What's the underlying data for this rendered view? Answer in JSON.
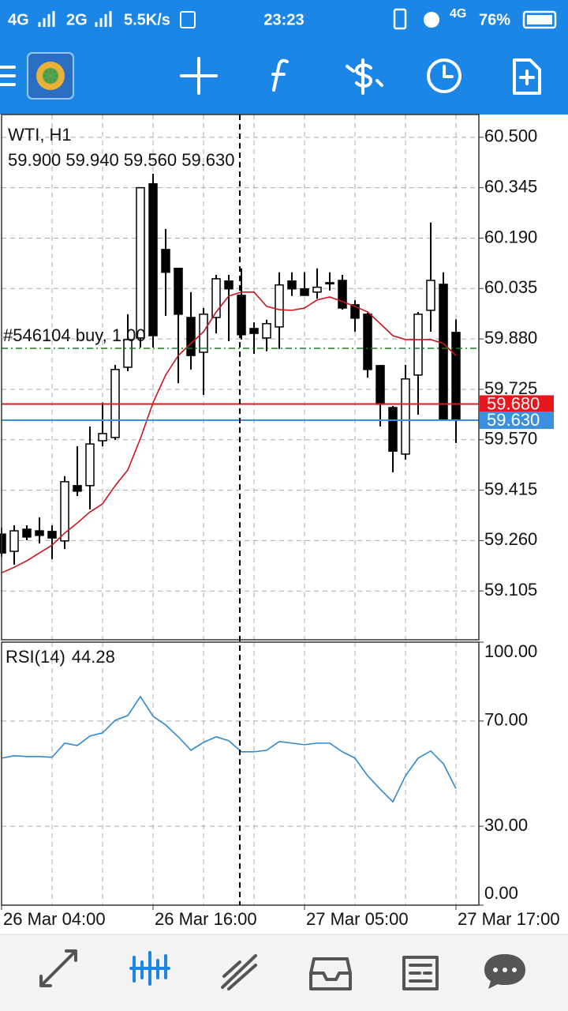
{
  "status_bar": {
    "network_1": "4G",
    "network_2": "2G",
    "speed": "5.5K/s",
    "time": "23:23",
    "network_3": "4G",
    "battery": "76%"
  },
  "chart_data": [
    {
      "type": "candlestick",
      "title": "WTI, H1",
      "info": "59.900 59.940 59.560 59.630",
      "categories": [
        "26 Mar 04:00",
        null,
        null,
        null,
        null,
        null,
        null,
        null,
        null,
        null,
        null,
        null,
        "26 Mar 16:00",
        null,
        null,
        null,
        null,
        null,
        null,
        null,
        null,
        null,
        null,
        null,
        "27 Mar 05:00",
        null,
        null,
        null,
        null,
        null,
        null,
        null,
        null,
        null,
        null,
        null,
        "27 Mar 17:00"
      ],
      "open": [
        59.28,
        59.227,
        59.295,
        59.29,
        59.288,
        59.259,
        59.429,
        59.429,
        59.567,
        59.577,
        59.793,
        59.883,
        60.357,
        60.155,
        60.097,
        59.946,
        59.839,
        59.946,
        60.058,
        60.014,
        59.912,
        59.883,
        59.917,
        60.058,
        60.034,
        60.024,
        60.051,
        60.06,
        59.985,
        59.956,
        59.798,
        59.669,
        59.526,
        59.769,
        59.968,
        60.048,
        59.9
      ],
      "high": [
        59.3,
        59.307,
        59.307,
        59.331,
        59.307,
        59.458,
        59.55,
        59.611,
        59.684,
        59.8,
        59.956,
        60.345,
        60.388,
        60.218,
        60.097,
        60.024,
        59.975,
        60.077,
        60.077,
        60.097,
        59.931,
        59.939,
        60.085,
        60.085,
        60.085,
        60.097,
        60.085,
        60.077,
        59.999,
        59.961,
        59.8,
        59.674,
        59.8,
        59.963,
        60.238,
        60.085,
        59.94
      ],
      "low": [
        59.21,
        59.186,
        59.261,
        59.251,
        59.203,
        59.234,
        59.397,
        59.356,
        59.55,
        59.57,
        59.781,
        59.854,
        59.854,
        59.951,
        59.744,
        59.786,
        59.708,
        59.897,
        59.873,
        59.878,
        59.834,
        59.842,
        59.849,
        60.012,
        60.012,
        60.004,
        60.029,
        59.97,
        59.902,
        59.761,
        59.611,
        59.47,
        59.509,
        59.647,
        59.902,
        59.63,
        59.56
      ],
      "close": [
        59.222,
        59.29,
        59.271,
        59.276,
        59.268,
        59.441,
        59.412,
        59.557,
        59.589,
        59.786,
        59.878,
        60.345,
        59.89,
        60.085,
        59.956,
        59.829,
        59.956,
        60.065,
        60.034,
        59.893,
        59.897,
        59.927,
        60.046,
        60.034,
        60.014,
        60.039,
        60.053,
        59.975,
        59.944,
        59.786,
        59.679,
        59.535,
        59.757,
        59.956,
        60.06,
        59.633,
        59.63
      ],
      "up_color": "#ffffff",
      "down_color": "#000000",
      "edge_color": "#000000",
      "moving_average": {
        "color": "#c8161d",
        "values": [
          59.161,
          59.178,
          59.198,
          59.222,
          59.246,
          59.283,
          59.314,
          59.348,
          59.373,
          59.429,
          59.477,
          59.574,
          59.684,
          59.769,
          59.829,
          59.866,
          59.902,
          59.963,
          60.012,
          60.024,
          60.024,
          59.98,
          59.97,
          59.968,
          59.975,
          60.0,
          60.009,
          59.995,
          59.98,
          59.963,
          59.927,
          59.89,
          59.878,
          59.878,
          59.878,
          59.866,
          59.829
        ]
      },
      "price_lines": [
        {
          "value": 59.68,
          "label": "59.680",
          "color": "#e8161d"
        },
        {
          "value": 59.63,
          "label": "59.630",
          "color": "#3b8fdc"
        }
      ],
      "order_line": {
        "label": "#546104 buy, 1.00",
        "value": 59.851,
        "color": "#1f7a1f"
      },
      "ylim": [
        58.955,
        60.57
      ],
      "yticks": [
        {
          "value": 60.5,
          "label": "60.500"
        },
        {
          "value": 60.345,
          "label": "60.345"
        },
        {
          "value": 60.19,
          "label": "60.190"
        },
        {
          "value": 60.035,
          "label": "60.035"
        },
        {
          "value": 59.88,
          "label": "59.880"
        },
        {
          "value": 59.725,
          "label": "59.725"
        },
        {
          "value": 59.57,
          "label": "59.570"
        },
        {
          "value": 59.415,
          "label": "59.415"
        },
        {
          "value": 59.26,
          "label": "59.260"
        },
        {
          "value": 59.105,
          "label": "59.105"
        }
      ],
      "grid": true
    },
    {
      "type": "line",
      "title": "RSI(14)",
      "series": [
        {
          "color": "#2e88d0",
          "values": [
            55.9,
            56.8,
            56.5,
            56.5,
            56.2,
            61.6,
            60.7,
            64.3,
            65.5,
            70.3,
            72.1,
            79.3,
            71.8,
            68.5,
            64.0,
            58.9,
            61.9,
            64.0,
            62.5,
            58.3,
            58.3,
            58.9,
            62.2,
            61.6,
            61.0,
            61.6,
            61.6,
            58.3,
            55.9,
            49.2,
            44.1,
            39.3,
            49.2,
            55.9,
            58.6,
            53.8,
            44.28
          ]
        }
      ],
      "ylim": [
        0,
        100
      ],
      "yticks": [
        {
          "value": 0,
          "label": "0.00"
        },
        {
          "value": 30,
          "label": "30.00"
        },
        {
          "value": 70,
          "label": "70.00"
        },
        {
          "value": 100,
          "label": "100.00"
        }
      ],
      "grid": true
    }
  ]
}
